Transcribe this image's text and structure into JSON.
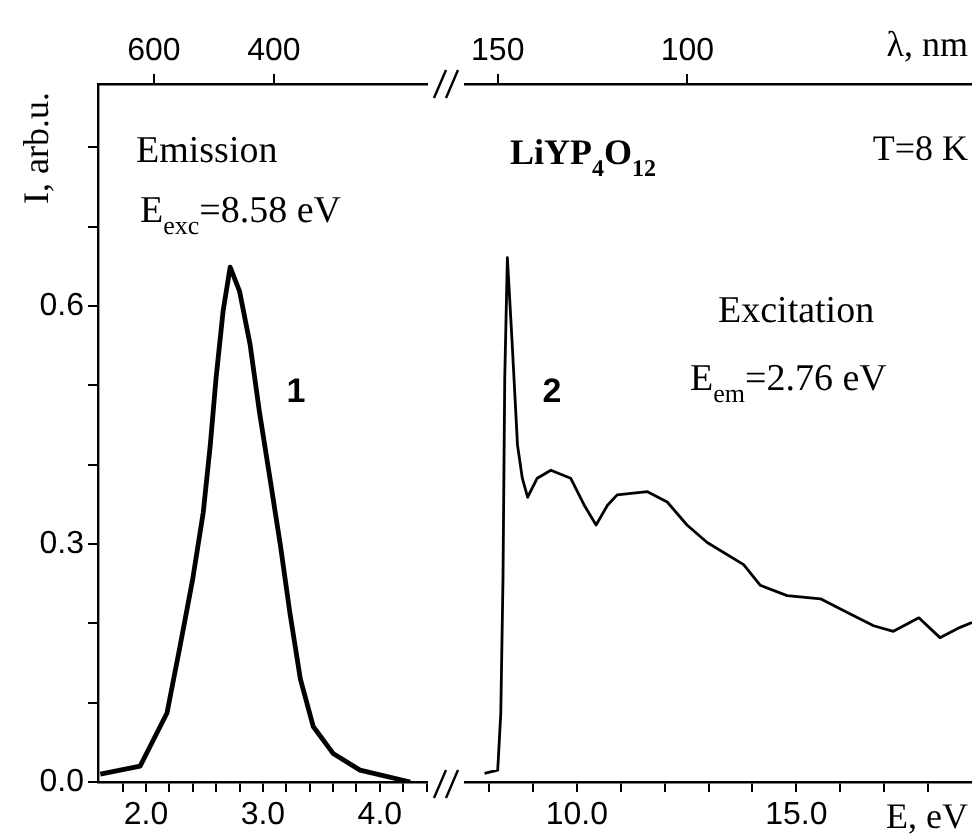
{
  "chart_data": [
    {
      "type": "line",
      "color": "#000000",
      "ylabel": "I, arb.u.",
      "x": [
        1.61,
        1.95,
        2.18,
        2.29,
        2.4,
        2.49,
        2.55,
        2.6,
        2.66,
        2.72,
        2.8,
        2.89,
        2.97,
        3.06,
        3.15,
        3.23,
        3.32,
        3.43,
        3.6,
        3.83,
        4.26
      ],
      "values": [
        0.01,
        0.02,
        0.087,
        0.17,
        0.256,
        0.34,
        0.425,
        0.51,
        0.594,
        0.649,
        0.619,
        0.552,
        0.467,
        0.383,
        0.298,
        0.214,
        0.13,
        0.07,
        0.036,
        0.015,
        0.0
      ],
      "xlim": [
        1.59,
        4.48
      ],
      "xticks": [
        {
          "value": 1.8,
          "label": null
        },
        {
          "value": 2,
          "label": "2.0"
        },
        {
          "value": 2.2,
          "label": null
        },
        {
          "value": 2.4,
          "label": null
        },
        {
          "value": 2.6,
          "label": null
        },
        {
          "value": 2.8,
          "label": null
        },
        {
          "value": 3,
          "label": "3.0"
        },
        {
          "value": 3.2,
          "label": null
        },
        {
          "value": 3.4,
          "label": null
        },
        {
          "value": 3.6,
          "label": null
        },
        {
          "value": 3.8,
          "label": null
        },
        {
          "value": 4,
          "label": "4.0"
        },
        {
          "value": 4.2,
          "label": null
        },
        {
          "value": 4.4,
          "label": null
        }
      ],
      "x2lim": [
        693,
        130
      ],
      "x2ticks": [
        600,
        400
      ],
      "ylim": [
        0,
        0.88
      ],
      "yticks": [
        {
          "value": 0,
          "label": "0.0"
        },
        {
          "value": 0.1,
          "label": null
        },
        {
          "value": 0.2,
          "label": null
        },
        {
          "value": 0.3,
          "label": "0.3"
        },
        {
          "value": 0.4,
          "label": null
        },
        {
          "value": 0.5,
          "label": null
        },
        {
          "value": 0.6,
          "label": "0.6"
        },
        {
          "value": 0.7,
          "label": null
        },
        {
          "value": 0.8,
          "label": null
        }
      ],
      "annotations": [
        "Emission",
        "E$_{exc}$=8.58 eV",
        "1"
      ]
    },
    {
      "type": "line",
      "color": "#000000",
      "xlabel": "E, eV",
      "x2label": "λ, nm",
      "tick_labels": "x",
      "x": [
        7.9,
        8.2,
        8.27,
        8.32,
        8.36,
        8.42,
        8.53,
        8.65,
        8.76,
        8.88,
        9.1,
        9.41,
        9.86,
        10.17,
        10.44,
        10.7,
        10.92,
        11.61,
        12.06,
        12.51,
        12.97,
        13.8,
        14.18,
        14.79,
        15.55,
        16.15,
        16.76,
        17.21,
        17.79,
        18.27,
        18.73,
        19.0
      ],
      "values": [
        0.011,
        0.015,
        0.087,
        0.256,
        0.509,
        0.661,
        0.552,
        0.425,
        0.383,
        0.359,
        0.383,
        0.393,
        0.383,
        0.349,
        0.324,
        0.349,
        0.362,
        0.366,
        0.353,
        0.324,
        0.302,
        0.274,
        0.248,
        0.235,
        0.231,
        0.214,
        0.197,
        0.19,
        0.207,
        0.182,
        0.195,
        0.201
      ],
      "xlim": [
        7.25,
        19
      ],
      "xticks": [
        {
          "value": 8,
          "label": null
        },
        {
          "value": 9,
          "label": null
        },
        {
          "value": 10,
          "label": "10.0"
        },
        {
          "value": 11,
          "label": null
        },
        {
          "value": 12,
          "label": null
        },
        {
          "value": 13,
          "label": null
        },
        {
          "value": 14,
          "label": null
        },
        {
          "value": 15,
          "label": "15.0"
        },
        {
          "value": 16,
          "label": null
        },
        {
          "value": 17,
          "label": null
        },
        {
          "value": 18,
          "label": null
        }
      ],
      "x2lim": [
        161,
        25
      ],
      "x2ticks": [
        150,
        100
      ],
      "ylim": [
        0,
        0.88
      ],
      "annotations": [
        "LiYP$_{4}$O$_{12}$",
        "T=8 K",
        "Excitation",
        "E$_{em}$=2.76 eV",
        "2"
      ]
    }
  ]
}
